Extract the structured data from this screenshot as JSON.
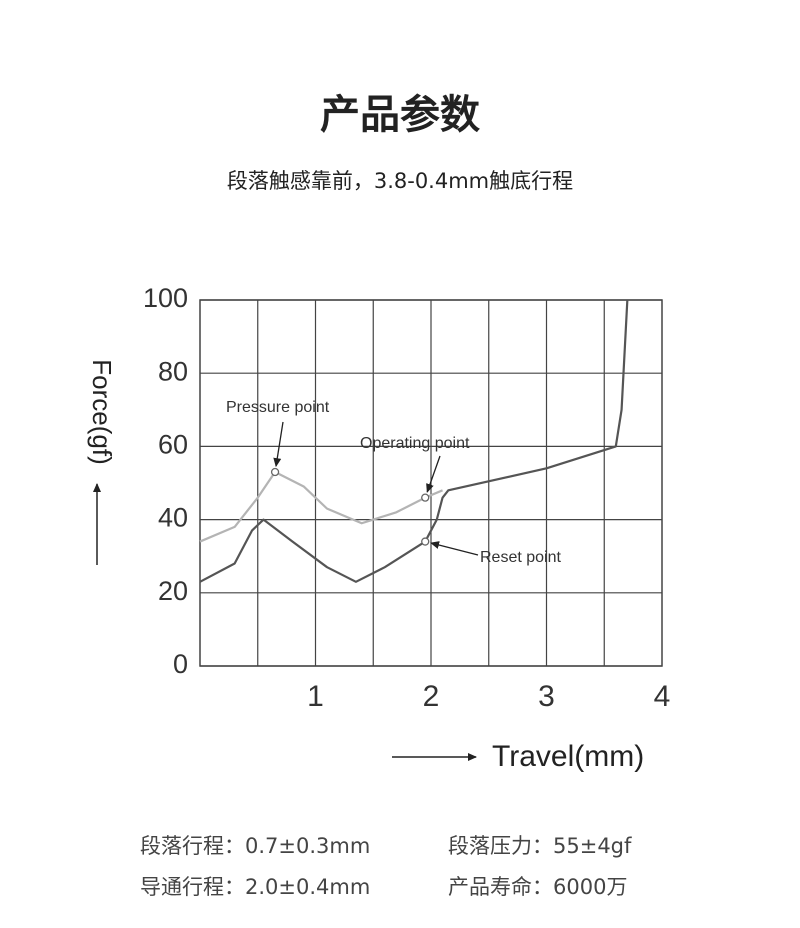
{
  "header": {
    "title": "产品参数",
    "subtitle": "段落触感靠前，3.8-0.4mm触底行程"
  },
  "chart_data": {
    "type": "line",
    "y_label": "Force(gf)",
    "x_label": "Travel(mm)",
    "xlim": [
      0,
      4
    ],
    "ylim": [
      0,
      100
    ],
    "xticks": [
      1,
      2,
      3,
      4
    ],
    "yticks": [
      0,
      20,
      40,
      60,
      80,
      100
    ],
    "xgrid": [
      0.5,
      1,
      1.5,
      2,
      2.5,
      3,
      3.5
    ],
    "grid": true,
    "series": [
      {
        "color": "#b4b4b4",
        "x": [
          0,
          0.3,
          0.5,
          0.65,
          0.9,
          1.1,
          1.4,
          1.7,
          1.95,
          2.1
        ],
        "values": [
          34,
          38,
          46,
          53,
          49,
          43,
          39,
          42,
          46,
          48
        ]
      },
      {
        "color": "#555555",
        "x": [
          0,
          0.3,
          0.45,
          0.55,
          0.8,
          1.1,
          1.35,
          1.6,
          1.95,
          2.05,
          2.1,
          2.15,
          3.0,
          3.6,
          3.65,
          3.7
        ],
        "values": [
          23,
          28,
          37,
          40,
          34,
          27,
          23,
          27,
          34,
          40,
          46,
          48,
          54,
          60,
          70,
          100
        ]
      }
    ],
    "annotations": [
      {
        "text": "Pressure point",
        "x": 0.65,
        "y": 53
      },
      {
        "text": "Operating point",
        "x": 1.95,
        "y": 46
      },
      {
        "text": "Reset point",
        "x": 1.95,
        "y": 34
      }
    ]
  },
  "specs": [
    [
      "段落行程：0.7±0.3mm",
      "段落压力：55±4gf"
    ],
    [
      "导通行程：2.0±0.4mm",
      "产品寿命：6000万"
    ]
  ]
}
